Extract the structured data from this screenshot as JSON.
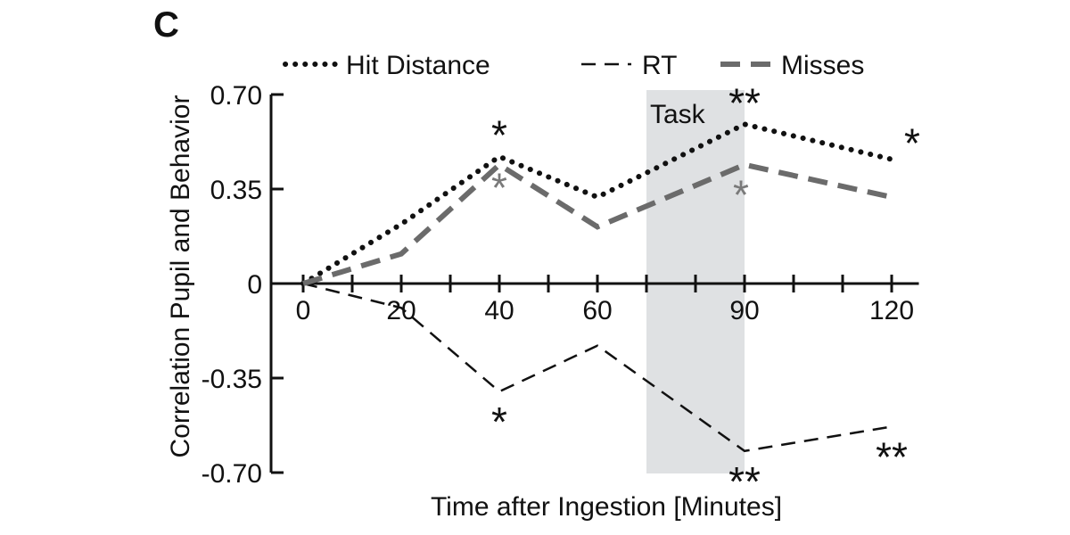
{
  "panel_label": "C",
  "chart_data": {
    "type": "line",
    "title": "",
    "xlabel": "Time after Ingestion [Minutes]",
    "ylabel": "Correlation Pupil and Behavior",
    "x": [
      0,
      20,
      40,
      60,
      90,
      120
    ],
    "x_tick_labels": [
      "0",
      "20",
      "40",
      "60",
      "90",
      "120"
    ],
    "x_tick_values": [
      0,
      20,
      40,
      60,
      90,
      120
    ],
    "y_tick_labels": [
      "0.70",
      "0.35",
      "0",
      "-0.35",
      "-0.70"
    ],
    "y_tick_values": [
      0.7,
      0.35,
      0,
      -0.35,
      -0.7
    ],
    "ylim": [
      -0.7,
      0.7
    ],
    "xlim": [
      0,
      125
    ],
    "grid": false,
    "legend_position": "top",
    "shaded_region": {
      "label": "Task",
      "x_start": 70,
      "x_end": 90,
      "color": "#dfe1e3"
    },
    "series": [
      {
        "name": "Hit Distance",
        "style": "dotted",
        "color": "#111111",
        "values": [
          0.0,
          0.22,
          0.47,
          0.32,
          0.59,
          0.46
        ],
        "significance": [
          {
            "x": 40,
            "label": "*",
            "placement": "above"
          },
          {
            "x": 90,
            "label": "**",
            "placement": "above"
          },
          {
            "x": 120,
            "label": "*",
            "placement": "right"
          }
        ]
      },
      {
        "name": "RT",
        "style": "dashed",
        "color": "#111111",
        "values": [
          0.0,
          -0.09,
          -0.4,
          -0.23,
          -0.62,
          -0.53
        ],
        "significance": [
          {
            "x": 40,
            "label": "*",
            "placement": "below"
          },
          {
            "x": 90,
            "label": "**",
            "placement": "below"
          },
          {
            "x": 120,
            "label": "**",
            "placement": "below"
          }
        ]
      },
      {
        "name": "Misses",
        "style": "thick-dashed",
        "color": "#6b6b6b",
        "values": [
          0.0,
          0.11,
          0.44,
          0.21,
          0.44,
          0.32
        ],
        "significance": [
          {
            "x": 40,
            "label": "*",
            "placement": "below"
          },
          {
            "x": 90,
            "label": "*",
            "placement": "left"
          }
        ]
      }
    ]
  }
}
